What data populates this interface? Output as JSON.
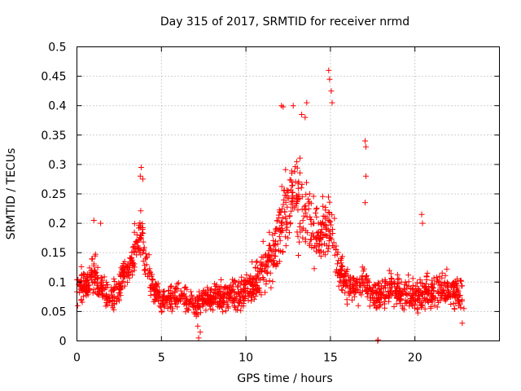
{
  "chart_data": {
    "type": "scatter",
    "title": "Day 315 of 2017, SRMTID for receiver nrmd",
    "xlabel": "GPS time / hours",
    "ylabel": "SRMTID / TECUs",
    "xlim": [
      0,
      25
    ],
    "ylim": [
      0,
      0.5
    ],
    "xticks": [
      0,
      5,
      10,
      15,
      20
    ],
    "xtick_labels": [
      "0",
      "5",
      "10",
      "15",
      "20"
    ],
    "yticks": [
      0,
      0.05,
      0.1,
      0.15,
      0.2,
      0.25,
      0.3,
      0.35,
      0.4,
      0.45,
      0.5
    ],
    "ytick_labels": [
      "0",
      "0.05",
      "0.1",
      "0.15",
      "0.2",
      "0.25",
      "0.3",
      "0.35",
      "0.4",
      "0.45",
      "0.5"
    ],
    "grid": true,
    "marker": "+",
    "color": "#ff0000",
    "series": [
      {
        "name": "SRMTID",
        "profile_hours": [
          0,
          0.5,
          1,
          1.5,
          2,
          2.5,
          3,
          3.5,
          3.8,
          4.2,
          4.5,
          5,
          5.5,
          6,
          6.5,
          7,
          7.5,
          8,
          8.5,
          9,
          9.5,
          10,
          10.5,
          11,
          11.5,
          12,
          12.5,
          13,
          13.5,
          14,
          14.5,
          15,
          15.5,
          16,
          16.5,
          17,
          17.5,
          18,
          18.5,
          19,
          19.5,
          20,
          20.5,
          21,
          21.5,
          22,
          22.5,
          22.8
        ],
        "profile_center": [
          0.09,
          0.1,
          0.11,
          0.09,
          0.07,
          0.09,
          0.12,
          0.16,
          0.19,
          0.12,
          0.09,
          0.07,
          0.07,
          0.08,
          0.07,
          0.06,
          0.07,
          0.07,
          0.08,
          0.08,
          0.08,
          0.09,
          0.1,
          0.12,
          0.14,
          0.19,
          0.23,
          0.24,
          0.22,
          0.19,
          0.18,
          0.2,
          0.12,
          0.1,
          0.09,
          0.1,
          0.08,
          0.08,
          0.09,
          0.08,
          0.08,
          0.08,
          0.08,
          0.08,
          0.09,
          0.09,
          0.08,
          0.08
        ],
        "profile_spread": [
          0.03,
          0.04,
          0.05,
          0.04,
          0.03,
          0.04,
          0.04,
          0.05,
          0.07,
          0.05,
          0.04,
          0.03,
          0.03,
          0.03,
          0.03,
          0.03,
          0.03,
          0.03,
          0.04,
          0.04,
          0.04,
          0.04,
          0.05,
          0.05,
          0.06,
          0.08,
          0.1,
          0.1,
          0.09,
          0.08,
          0.08,
          0.1,
          0.05,
          0.04,
          0.04,
          0.05,
          0.04,
          0.04,
          0.04,
          0.04,
          0.04,
          0.04,
          0.04,
          0.04,
          0.04,
          0.04,
          0.04,
          0.04
        ],
        "notable_points": [
          {
            "x": 14.9,
            "y": 0.46
          },
          {
            "x": 14.95,
            "y": 0.445
          },
          {
            "x": 15.05,
            "y": 0.425
          },
          {
            "x": 15.1,
            "y": 0.405
          },
          {
            "x": 12.1,
            "y": 0.4
          },
          {
            "x": 12.2,
            "y": 0.398
          },
          {
            "x": 12.8,
            "y": 0.4
          },
          {
            "x": 13.6,
            "y": 0.405
          },
          {
            "x": 13.3,
            "y": 0.385
          },
          {
            "x": 13.5,
            "y": 0.38
          },
          {
            "x": 3.8,
            "y": 0.295
          },
          {
            "x": 3.75,
            "y": 0.28
          },
          {
            "x": 3.9,
            "y": 0.275
          },
          {
            "x": 17.05,
            "y": 0.34
          },
          {
            "x": 17.1,
            "y": 0.33
          },
          {
            "x": 17.1,
            "y": 0.28
          },
          {
            "x": 17.05,
            "y": 0.235
          },
          {
            "x": 20.4,
            "y": 0.215
          },
          {
            "x": 20.45,
            "y": 0.2
          },
          {
            "x": 1.0,
            "y": 0.205
          },
          {
            "x": 1.4,
            "y": 0.2
          },
          {
            "x": 7.2,
            "y": 0.005
          },
          {
            "x": 7.3,
            "y": 0.015
          },
          {
            "x": 7.15,
            "y": 0.025
          },
          {
            "x": 17.8,
            "y": 0.0
          },
          {
            "x": 17.82,
            "y": 0.002
          },
          {
            "x": 0.05,
            "y": 0.06
          },
          {
            "x": 22.8,
            "y": 0.03
          },
          {
            "x": 22.9,
            "y": 0.055
          }
        ]
      }
    ]
  }
}
